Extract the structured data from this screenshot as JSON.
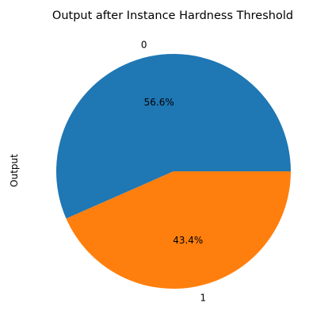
{
  "chart_data": {
    "type": "pie",
    "title": "Output after Instance Hardness Threshold",
    "ylabel": "Output",
    "xlabel": "",
    "slices": [
      {
        "label": "0",
        "value": 56.6,
        "pct_text": "56.6%",
        "color": "#1f77b4"
      },
      {
        "label": "1",
        "value": 43.4,
        "pct_text": "43.4%",
        "color": "#ff7f0e"
      }
    ],
    "start_angle_deg": 0,
    "direction": "counterclockwise"
  }
}
